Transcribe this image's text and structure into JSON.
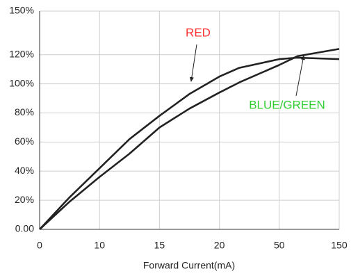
{
  "chart_data": {
    "type": "line",
    "x_label": "Forward Current(mA)",
    "xlim": [
      0,
      150
    ],
    "xticks": [
      0,
      10,
      15,
      20,
      50,
      150
    ],
    "x_scale": "piecewise-by-ticks",
    "ylim": [
      0,
      150
    ],
    "yticks": [
      {
        "value": 0,
        "label": "0.00"
      },
      {
        "value": 20,
        "label": "20%"
      },
      {
        "value": 40,
        "label": "40%"
      },
      {
        "value": 60,
        "label": "60%"
      },
      {
        "value": 80,
        "label": "80%"
      },
      {
        "value": 100,
        "label": "100%"
      },
      {
        "value": 120,
        "label": "120%"
      },
      {
        "value": 150,
        "label": "150%"
      }
    ],
    "grid": true,
    "x": [
      0,
      5,
      10,
      12.5,
      15,
      17.5,
      20,
      30,
      50,
      80,
      150
    ],
    "series": [
      {
        "name": "RED",
        "color": "#222222",
        "label_color": "#ff3333",
        "values": [
          0,
          22,
          42,
          62,
          78,
          93,
          105,
          111,
          117,
          118,
          117
        ]
      },
      {
        "name": "BLUE/GREEN",
        "color": "#222222",
        "label_color": "#33cc33",
        "values": [
          0,
          19,
          36,
          52,
          70,
          83,
          94,
          101,
          113,
          119,
          124
        ]
      }
    ]
  }
}
